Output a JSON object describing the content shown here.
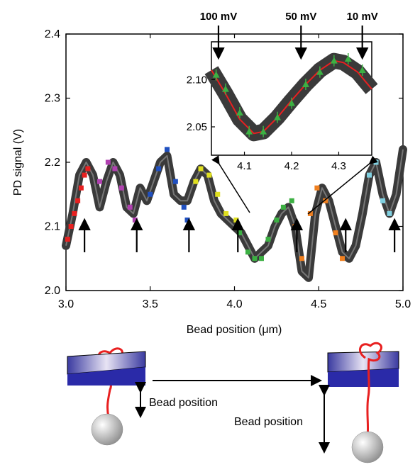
{
  "chart_data": {
    "type": "line",
    "xlabel": "Bead position (μm)",
    "ylabel": "PD signal (V)",
    "xlim": [
      3.0,
      5.0
    ],
    "ylim": [
      2.0,
      2.4
    ],
    "x_ticks": [
      "3.0",
      "3.5",
      "4.0",
      "4.5",
      "5.0"
    ],
    "y_ticks": [
      "2.0",
      "2.1",
      "2.2",
      "2.3",
      "2.4"
    ],
    "series": [
      {
        "x": [
          3.0,
          3.04,
          3.08,
          3.12,
          3.16,
          3.2,
          3.24,
          3.28,
          3.32,
          3.36,
          3.4,
          3.44,
          3.48,
          3.52,
          3.56,
          3.6,
          3.64,
          3.68,
          3.72,
          3.76,
          3.8,
          3.84,
          3.88,
          3.92,
          3.96,
          4.0,
          4.04,
          4.08,
          4.12,
          4.16,
          4.2,
          4.24,
          4.28,
          4.32,
          4.36,
          4.4,
          4.44,
          4.48,
          4.52,
          4.56,
          4.6,
          4.64,
          4.68,
          4.72,
          4.76,
          4.8,
          4.84,
          4.88,
          4.92,
          4.96,
          5.0
        ],
        "values": [
          2.07,
          2.12,
          2.18,
          2.2,
          2.18,
          2.13,
          2.17,
          2.2,
          2.18,
          2.13,
          2.12,
          2.16,
          2.14,
          2.17,
          2.2,
          2.21,
          2.15,
          2.14,
          2.14,
          2.17,
          2.19,
          2.18,
          2.14,
          2.12,
          2.11,
          2.1,
          2.09,
          2.07,
          2.05,
          2.06,
          2.07,
          2.1,
          2.12,
          2.13,
          2.1,
          2.03,
          2.02,
          2.12,
          2.16,
          2.14,
          2.1,
          2.06,
          2.05,
          2.07,
          2.12,
          2.18,
          2.2,
          2.15,
          2.12,
          2.15,
          2.22
        ]
      }
    ],
    "markers": [
      {
        "color": "#e82020",
        "x": [
          3.01,
          3.03,
          3.05,
          3.07,
          3.09,
          3.11,
          3.13
        ],
        "y": [
          2.08,
          2.1,
          2.12,
          2.14,
          2.16,
          2.18,
          2.19
        ]
      },
      {
        "color": "#b040b0",
        "x": [
          3.2,
          3.25,
          3.29,
          3.33,
          3.38,
          3.41
        ],
        "y": [
          2.17,
          2.2,
          2.19,
          2.16,
          2.13,
          2.11
        ]
      },
      {
        "color": "#2050c0",
        "x": [
          3.5,
          3.55,
          3.6,
          3.65,
          3.7,
          3.72
        ],
        "y": [
          2.15,
          2.19,
          2.22,
          2.17,
          2.13,
          2.11
        ]
      },
      {
        "color": "#e0e020",
        "x": [
          3.77,
          3.8,
          3.85,
          3.9,
          3.95,
          4.01
        ],
        "y": [
          2.17,
          2.19,
          2.18,
          2.15,
          2.12,
          2.11
        ]
      },
      {
        "color": "#3cb043",
        "x": [
          4.03,
          4.08,
          4.12,
          4.16,
          4.2,
          4.25,
          4.29,
          4.34
        ],
        "y": [
          2.09,
          2.06,
          2.05,
          2.05,
          2.08,
          2.11,
          2.13,
          2.14
        ]
      },
      {
        "color": "#f08020",
        "x": [
          4.36,
          4.4,
          4.45,
          4.49,
          4.54,
          4.6,
          4.64
        ],
        "y": [
          2.1,
          2.05,
          2.12,
          2.16,
          2.14,
          2.09,
          2.05
        ]
      },
      {
        "color": "#80d0e0",
        "x": [
          4.8,
          4.84,
          4.88,
          4.92
        ],
        "y": [
          2.18,
          2.2,
          2.14,
          2.12
        ]
      }
    ],
    "arrows_x": [
      3.11,
      3.42,
      3.73,
      4.02,
      4.37,
      4.66,
      4.95
    ],
    "inset": {
      "xlim": [
        4.03,
        4.37
      ],
      "ylim": [
        2.02,
        2.14
      ],
      "x_ticks": [
        "4.1",
        "4.2",
        "4.3"
      ],
      "y_ticks": [
        "2.05",
        "2.10"
      ],
      "curve_x": [
        4.03,
        4.06,
        4.09,
        4.12,
        4.14,
        4.17,
        4.2,
        4.23,
        4.26,
        4.29,
        4.31,
        4.34,
        4.37
      ],
      "curve_y": [
        2.11,
        2.085,
        2.058,
        2.043,
        2.045,
        2.06,
        2.078,
        2.095,
        2.11,
        2.12,
        2.118,
        2.108,
        2.09
      ],
      "points_x": [
        4.04,
        4.06,
        4.09,
        4.11,
        4.14,
        4.17,
        4.2,
        4.23,
        4.26,
        4.29,
        4.32,
        4.35
      ],
      "points_y": [
        2.105,
        2.09,
        2.065,
        2.045,
        2.045,
        2.06,
        2.075,
        2.095,
        2.108,
        2.12,
        2.122,
        2.11
      ],
      "voltage_labels": [
        "100 mV",
        "50 mV",
        "10 mV"
      ],
      "voltage_x": [
        4.045,
        4.22,
        4.35
      ]
    }
  },
  "diagram": {
    "bead_label_left": "Bead position",
    "bead_label_right": "Bead position"
  }
}
